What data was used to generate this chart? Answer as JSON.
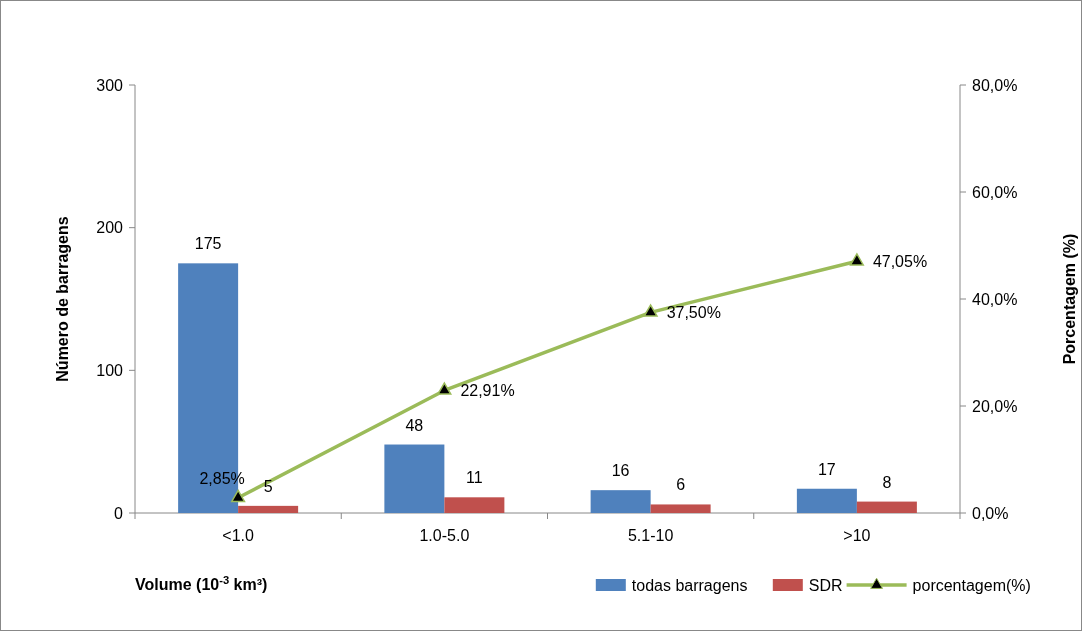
{
  "chart_data": {
    "type": "bar",
    "xlabel": "Volume (10$^{-3}$ km³)",
    "ylabel": "Número de barragens",
    "y2label": "Porcentagem (%)",
    "categories": [
      "<1.0",
      "1.0-5.0",
      "5.1-10",
      ">10"
    ],
    "series": [
      {
        "name": "todas barragens",
        "color": "#4f81bd",
        "values": [
          175,
          48,
          16,
          17
        ],
        "value_labels": [
          "175",
          "48",
          "16",
          "17"
        ]
      },
      {
        "name": "SDR",
        "color": "#c0504d",
        "values": [
          5,
          11,
          6,
          8
        ],
        "value_labels": [
          "5",
          "11",
          "6",
          "8"
        ]
      },
      {
        "name": "porcentagem(%)",
        "type": "line",
        "axis": "y2",
        "color": "#9bbb59",
        "marker": "triangle",
        "values": [
          2.85,
          22.91,
          37.5,
          47.05
        ],
        "value_labels": [
          "2,85%",
          "22,91%",
          "37,50%",
          "47,05%"
        ]
      }
    ],
    "ylim": [
      0,
      300
    ],
    "yticks": [
      0,
      100,
      200,
      300
    ],
    "y2lim": [
      0,
      80
    ],
    "y2ticks": [
      {
        "value": 0,
        "label": "0,0%"
      },
      {
        "value": 20,
        "label": "20,0%"
      },
      {
        "value": 40,
        "label": "40,0%"
      },
      {
        "value": 60,
        "label": "60,0%"
      },
      {
        "value": 80,
        "label": "80,0%"
      }
    ],
    "grid": false,
    "legend": "bottom right"
  }
}
